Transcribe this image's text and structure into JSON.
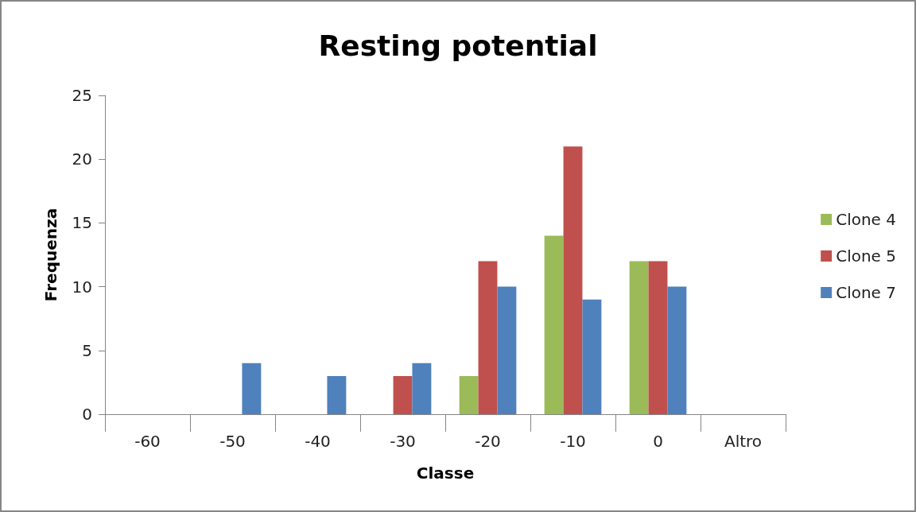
{
  "chart_data": {
    "type": "bar",
    "title": "Resting potential",
    "xlabel": "Classe",
    "ylabel": "Frequenza",
    "categories": [
      "-60",
      "-50",
      "-40",
      "-30",
      "-20",
      "-10",
      "0",
      "Altro"
    ],
    "series": [
      {
        "name": "Clone 4",
        "color": "#9bbb59",
        "values": [
          0,
          0,
          0,
          0,
          3,
          14,
          12,
          0
        ]
      },
      {
        "name": "Clone 5",
        "color": "#c0504d",
        "values": [
          0,
          0,
          0,
          3,
          12,
          21,
          12,
          0
        ]
      },
      {
        "name": "Clone 7",
        "color": "#4f81bd",
        "values": [
          0,
          4,
          3,
          4,
          10,
          9,
          10,
          0
        ]
      }
    ],
    "ylim": [
      0,
      25
    ],
    "yticks": [
      0,
      5,
      10,
      15,
      20,
      25
    ],
    "grid": false,
    "legend": "right"
  }
}
